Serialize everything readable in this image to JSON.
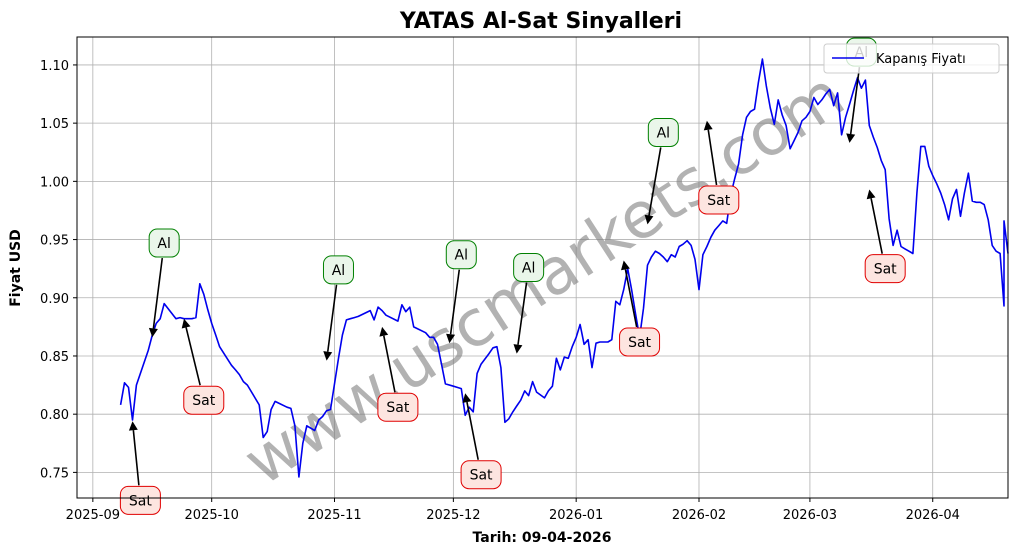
{
  "chart_data": {
    "type": "line",
    "title": "YATAS Al-Sat Sinyalleri",
    "xlabel": "Tarih: 09-04-2026",
    "ylabel": "Fiyat USD",
    "xlim": [
      "2025-08-28",
      "2026-04-20"
    ],
    "ylim": [
      0.728,
      1.124
    ],
    "grid": true,
    "legend_position": "top-right",
    "x_ticks": [
      "2025-09",
      "2025-10",
      "2025-11",
      "2025-12",
      "2026-01",
      "2026-02",
      "2026-03",
      "2026-04"
    ],
    "y_ticks": [
      0.75,
      0.8,
      0.85,
      0.9,
      0.95,
      1.0,
      1.05,
      1.1
    ],
    "y_tick_labels": [
      "0.75",
      "0.80",
      "0.85",
      "0.90",
      "0.95",
      "1.00",
      "1.05",
      "1.10"
    ],
    "watermark": "www.uscmarkets.com",
    "colors": {
      "line": "#0000ee",
      "buy_border": "#008000",
      "buy_fill": "#eaf6ea",
      "sell_border": "#e00000",
      "sell_fill": "#fde5e0",
      "grid": "#b0b0b0"
    },
    "series": [
      {
        "name": "Kapanış Fiyatı",
        "points": [
          [
            "2025-09-08",
            0.808
          ],
          [
            "2025-09-09",
            0.827
          ],
          [
            "2025-09-10",
            0.823
          ],
          [
            "2025-09-11",
            0.795
          ],
          [
            "2025-09-12",
            0.825
          ],
          [
            "2025-09-15",
            0.855
          ],
          [
            "2025-09-16",
            0.868
          ],
          [
            "2025-09-17",
            0.878
          ],
          [
            "2025-09-18",
            0.882
          ],
          [
            "2025-09-19",
            0.895
          ],
          [
            "2025-09-22",
            0.882
          ],
          [
            "2025-09-23",
            0.883
          ],
          [
            "2025-09-24",
            0.882
          ],
          [
            "2025-09-25",
            0.882
          ],
          [
            "2025-09-26",
            0.882
          ],
          [
            "2025-09-27",
            0.883
          ],
          [
            "2025-09-28",
            0.912
          ],
          [
            "2025-09-29",
            0.903
          ],
          [
            "2025-09-30",
            0.89
          ],
          [
            "2025-10-01",
            0.878
          ],
          [
            "2025-10-02",
            0.868
          ],
          [
            "2025-10-03",
            0.858
          ],
          [
            "2025-10-06",
            0.842
          ],
          [
            "2025-10-07",
            0.838
          ],
          [
            "2025-10-08",
            0.834
          ],
          [
            "2025-10-09",
            0.828
          ],
          [
            "2025-10-10",
            0.825
          ],
          [
            "2025-10-13",
            0.808
          ],
          [
            "2025-10-14",
            0.78
          ],
          [
            "2025-10-15",
            0.785
          ],
          [
            "2025-10-16",
            0.804
          ],
          [
            "2025-10-17",
            0.811
          ],
          [
            "2025-10-20",
            0.806
          ],
          [
            "2025-10-21",
            0.805
          ],
          [
            "2025-10-22",
            0.79
          ],
          [
            "2025-10-23",
            0.746
          ],
          [
            "2025-10-24",
            0.775
          ],
          [
            "2025-10-25",
            0.79
          ],
          [
            "2025-10-27",
            0.786
          ],
          [
            "2025-10-28",
            0.795
          ],
          [
            "2025-10-29",
            0.798
          ],
          [
            "2025-10-30",
            0.803
          ],
          [
            "2025-10-31",
            0.804
          ],
          [
            "2025-11-02",
            0.848
          ],
          [
            "2025-11-03",
            0.868
          ],
          [
            "2025-11-04",
            0.881
          ],
          [
            "2025-11-05",
            0.882
          ],
          [
            "2025-11-06",
            0.883
          ],
          [
            "2025-11-07",
            0.884
          ],
          [
            "2025-11-10",
            0.889
          ],
          [
            "2025-11-11",
            0.881
          ],
          [
            "2025-11-12",
            0.892
          ],
          [
            "2025-11-13",
            0.889
          ],
          [
            "2025-11-14",
            0.885
          ],
          [
            "2025-11-17",
            0.88
          ],
          [
            "2025-11-18",
            0.894
          ],
          [
            "2025-11-19",
            0.888
          ],
          [
            "2025-11-20",
            0.892
          ],
          [
            "2025-11-21",
            0.875
          ],
          [
            "2025-11-24",
            0.87
          ],
          [
            "2025-11-25",
            0.866
          ],
          [
            "2025-11-26",
            0.866
          ],
          [
            "2025-11-27",
            0.86
          ],
          [
            "2025-11-28",
            0.843
          ],
          [
            "2025-11-29",
            0.826
          ],
          [
            "2025-12-01",
            0.824
          ],
          [
            "2025-12-02",
            0.823
          ],
          [
            "2025-12-03",
            0.822
          ],
          [
            "2025-12-04",
            0.799
          ],
          [
            "2025-12-05",
            0.806
          ],
          [
            "2025-12-06",
            0.802
          ],
          [
            "2025-12-07",
            0.835
          ],
          [
            "2025-12-08",
            0.843
          ],
          [
            "2025-12-10",
            0.852
          ],
          [
            "2025-12-11",
            0.857
          ],
          [
            "2025-12-12",
            0.858
          ],
          [
            "2025-12-13",
            0.84
          ],
          [
            "2025-12-14",
            0.793
          ],
          [
            "2025-12-15",
            0.796
          ],
          [
            "2025-12-16",
            0.802
          ],
          [
            "2025-12-17",
            0.807
          ],
          [
            "2025-12-18",
            0.812
          ],
          [
            "2025-12-19",
            0.82
          ],
          [
            "2025-12-20",
            0.816
          ],
          [
            "2025-12-21",
            0.828
          ],
          [
            "2025-12-22",
            0.819
          ],
          [
            "2025-12-24",
            0.814
          ],
          [
            "2025-12-25",
            0.82
          ],
          [
            "2025-12-26",
            0.824
          ],
          [
            "2025-12-27",
            0.848
          ],
          [
            "2025-12-28",
            0.838
          ],
          [
            "2025-12-29",
            0.849
          ],
          [
            "2025-12-30",
            0.848
          ],
          [
            "2025-12-31",
            0.858
          ],
          [
            "2026-01-01",
            0.866
          ],
          [
            "2026-01-02",
            0.877
          ],
          [
            "2026-01-03",
            0.86
          ],
          [
            "2026-01-04",
            0.864
          ],
          [
            "2026-01-05",
            0.84
          ],
          [
            "2026-01-06",
            0.861
          ],
          [
            "2026-01-07",
            0.862
          ],
          [
            "2026-01-08",
            0.862
          ],
          [
            "2026-01-09",
            0.862
          ],
          [
            "2026-01-10",
            0.864
          ],
          [
            "2026-01-11",
            0.897
          ],
          [
            "2026-01-12",
            0.894
          ],
          [
            "2026-01-13",
            0.907
          ],
          [
            "2026-01-14",
            0.925
          ],
          [
            "2026-01-15",
            0.907
          ],
          [
            "2026-01-16",
            0.886
          ],
          [
            "2026-01-17",
            0.866
          ],
          [
            "2026-01-18",
            0.891
          ],
          [
            "2026-01-19",
            0.928
          ],
          [
            "2026-01-20",
            0.935
          ],
          [
            "2026-01-21",
            0.94
          ],
          [
            "2026-01-22",
            0.938
          ],
          [
            "2026-01-23",
            0.935
          ],
          [
            "2026-01-24",
            0.931
          ],
          [
            "2026-01-25",
            0.937
          ],
          [
            "2026-01-26",
            0.935
          ],
          [
            "2026-01-27",
            0.944
          ],
          [
            "2026-01-28",
            0.946
          ],
          [
            "2026-01-29",
            0.949
          ],
          [
            "2026-01-30",
            0.945
          ],
          [
            "2026-01-31",
            0.933
          ],
          [
            "2026-02-01",
            0.907
          ],
          [
            "2026-02-02",
            0.937
          ],
          [
            "2026-02-03",
            0.944
          ],
          [
            "2026-02-04",
            0.952
          ],
          [
            "2026-02-05",
            0.958
          ],
          [
            "2026-02-06",
            0.962
          ],
          [
            "2026-02-07",
            0.966
          ],
          [
            "2026-02-08",
            0.964
          ],
          [
            "2026-02-09",
            0.988
          ],
          [
            "2026-02-10",
            1.002
          ],
          [
            "2026-02-11",
            1.015
          ],
          [
            "2026-02-12",
            1.04
          ],
          [
            "2026-02-13",
            1.055
          ],
          [
            "2026-02-14",
            1.06
          ],
          [
            "2026-02-15",
            1.062
          ],
          [
            "2026-02-16",
            1.085
          ],
          [
            "2026-02-17",
            1.105
          ],
          [
            "2026-02-18",
            1.082
          ],
          [
            "2026-02-19",
            1.063
          ],
          [
            "2026-02-20",
            1.049
          ],
          [
            "2026-02-21",
            1.07
          ],
          [
            "2026-02-22",
            1.057
          ],
          [
            "2026-02-23",
            1.048
          ],
          [
            "2026-02-24",
            1.028
          ],
          [
            "2026-02-25",
            1.035
          ],
          [
            "2026-02-26",
            1.042
          ],
          [
            "2026-02-27",
            1.052
          ],
          [
            "2026-02-28",
            1.055
          ],
          [
            "2026-03-01",
            1.06
          ],
          [
            "2026-03-02",
            1.072
          ],
          [
            "2026-03-03",
            1.066
          ],
          [
            "2026-03-04",
            1.07
          ],
          [
            "2026-03-05",
            1.075
          ],
          [
            "2026-03-06",
            1.079
          ],
          [
            "2026-03-07",
            1.065
          ],
          [
            "2026-03-08",
            1.076
          ],
          [
            "2026-03-09",
            1.04
          ],
          [
            "2026-03-10",
            1.055
          ],
          [
            "2026-03-11",
            1.066
          ],
          [
            "2026-03-12",
            1.078
          ],
          [
            "2026-03-13",
            1.089
          ],
          [
            "2026-03-14",
            1.08
          ],
          [
            "2026-03-15",
            1.087
          ],
          [
            "2026-03-16",
            1.048
          ],
          [
            "2026-03-17",
            1.038
          ],
          [
            "2026-03-18",
            1.029
          ],
          [
            "2026-03-19",
            1.018
          ],
          [
            "2026-03-20",
            1.01
          ],
          [
            "2026-03-21",
            0.968
          ],
          [
            "2026-03-22",
            0.945
          ],
          [
            "2026-03-23",
            0.958
          ],
          [
            "2026-03-24",
            0.944
          ],
          [
            "2026-03-25",
            0.942
          ],
          [
            "2026-03-26",
            0.94
          ],
          [
            "2026-03-27",
            0.938
          ],
          [
            "2026-03-28",
            0.99
          ],
          [
            "2026-03-29",
            1.03
          ],
          [
            "2026-03-30",
            1.03
          ],
          [
            "2026-03-31",
            1.013
          ],
          [
            "2026-04-01",
            1.005
          ],
          [
            "2026-04-02",
            0.998
          ],
          [
            "2026-04-03",
            0.99
          ],
          [
            "2026-04-04",
            0.98
          ],
          [
            "2026-04-05",
            0.967
          ],
          [
            "2026-04-06",
            0.985
          ],
          [
            "2026-04-07",
            0.993
          ],
          [
            "2026-04-08",
            0.97
          ],
          [
            "2026-04-09",
            0.99
          ],
          [
            "2026-04-10",
            1.007
          ],
          [
            "2026-04-11",
            0.983
          ],
          [
            "2026-04-12",
            0.982
          ],
          [
            "2026-04-13",
            0.982
          ],
          [
            "2026-04-14",
            0.98
          ],
          [
            "2026-04-15",
            0.967
          ],
          [
            "2026-04-16",
            0.945
          ],
          [
            "2026-04-17",
            0.94
          ],
          [
            "2026-04-18",
            0.938
          ],
          [
            "2026-04-19",
            0.893
          ],
          [
            "2026-04-19",
            0.966
          ],
          [
            "2026-04-20",
            0.938
          ]
        ]
      }
    ],
    "annotations": [
      {
        "label": "Sat",
        "type": "sell",
        "tip": [
          "2025-09-11",
          0.794
        ],
        "box": [
          "2025-09-13",
          0.726
        ]
      },
      {
        "label": "Al",
        "type": "buy",
        "tip": [
          "2025-09-16",
          0.866
        ],
        "box": [
          "2025-09-19",
          0.947
        ]
      },
      {
        "label": "Sat",
        "type": "sell",
        "tip": [
          "2025-09-24",
          0.882
        ],
        "box": [
          "2025-09-29",
          0.812
        ]
      },
      {
        "label": "Al",
        "type": "buy",
        "tip": [
          "2025-10-30",
          0.846
        ],
        "box": [
          "2025-11-02",
          0.924
        ]
      },
      {
        "label": "Sat",
        "type": "sell",
        "tip": [
          "2025-11-13",
          0.875
        ],
        "box": [
          "2025-11-17",
          0.806
        ]
      },
      {
        "label": "Al",
        "type": "buy",
        "tip": [
          "2025-11-30",
          0.861
        ],
        "box": [
          "2025-12-03",
          0.937
        ]
      },
      {
        "label": "Sat",
        "type": "sell",
        "tip": [
          "2025-12-04",
          0.818
        ],
        "box": [
          "2025-12-08",
          0.748
        ]
      },
      {
        "label": "Al",
        "type": "buy",
        "tip": [
          "2025-12-17",
          0.852
        ],
        "box": [
          "2025-12-20",
          0.926
        ]
      },
      {
        "label": "Sat",
        "type": "sell",
        "tip": [
          "2026-01-13",
          0.932
        ],
        "box": [
          "2026-01-17",
          0.862
        ]
      },
      {
        "label": "Al",
        "type": "buy",
        "tip": [
          "2026-01-19",
          0.963
        ],
        "box": [
          "2026-01-23",
          1.042
        ]
      },
      {
        "label": "Sat",
        "type": "sell",
        "tip": [
          "2026-02-03",
          1.052
        ],
        "box": [
          "2026-02-06",
          0.984
        ]
      },
      {
        "label": "Al",
        "type": "buy",
        "tip": [
          "2026-03-11",
          1.033
        ],
        "box": [
          "2026-03-14",
          1.111
        ]
      },
      {
        "label": "Sat",
        "type": "sell",
        "tip": [
          "2026-03-16",
          0.993
        ],
        "box": [
          "2026-03-20",
          0.925
        ]
      }
    ]
  }
}
